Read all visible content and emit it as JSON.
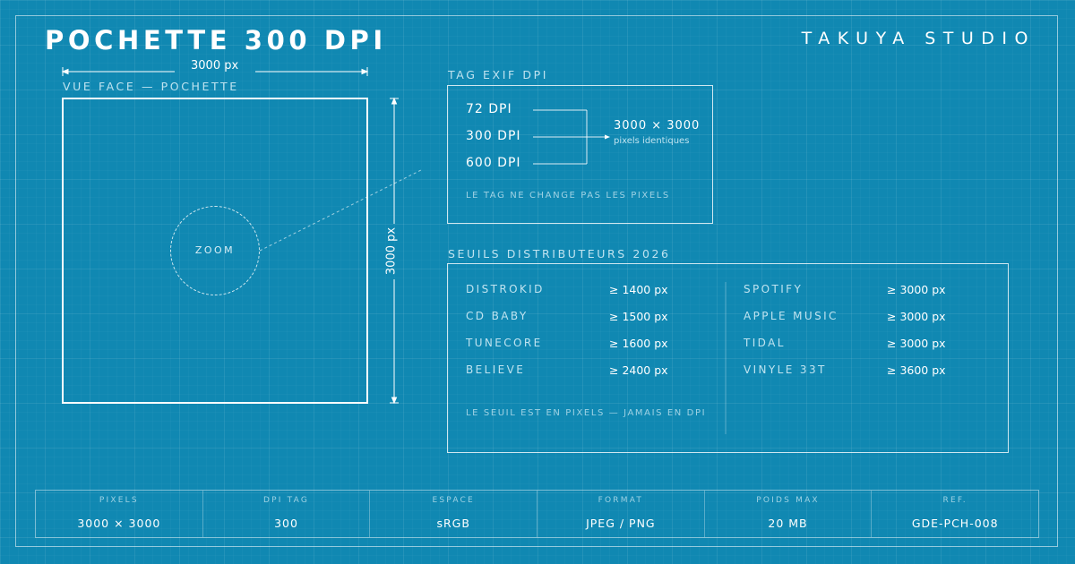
{
  "header": {
    "title": "POCHETTE 300 DPI",
    "studio": "TAKUYA STUDIO"
  },
  "cover_view": {
    "label": "VUE FACE — POCHETTE",
    "width_label": "3000 px",
    "height_label": "3000 px",
    "zoom_label": "ZOOM"
  },
  "exif": {
    "heading": "TAG EXIF DPI",
    "options": [
      "72 DPI",
      "300 DPI",
      "600 DPI"
    ],
    "result_main": "3000 × 3000",
    "result_sub": "pixels identiques",
    "note": "LE TAG NE CHANGE PAS LES PIXELS"
  },
  "thresholds": {
    "heading": "SEUILS DISTRIBUTEURS 2026",
    "left": [
      {
        "name": "DISTROKID",
        "value": "≥ 1400 px"
      },
      {
        "name": "CD BABY",
        "value": "≥ 1500 px"
      },
      {
        "name": "TUNECORE",
        "value": "≥ 1600 px"
      },
      {
        "name": "BELIEVE",
        "value": "≥ 2400 px"
      }
    ],
    "right": [
      {
        "name": "SPOTIFY",
        "value": "≥ 3000 px"
      },
      {
        "name": "APPLE MUSIC",
        "value": "≥ 3000 px"
      },
      {
        "name": "TIDAL",
        "value": "≥ 3000 px"
      },
      {
        "name": "VINYLE 33T",
        "value": "≥ 3600 px"
      }
    ],
    "note": "LE SEUIL EST EN PIXELS — JAMAIS EN DPI"
  },
  "specs": [
    {
      "label": "PIXELS",
      "value": "3000 × 3000"
    },
    {
      "label": "DPI TAG",
      "value": "300"
    },
    {
      "label": "ESPACE",
      "value": "sRGB"
    },
    {
      "label": "FORMAT",
      "value": "JPEG / PNG"
    },
    {
      "label": "POIDS MAX",
      "value": "20 MB"
    },
    {
      "label": "REF.",
      "value": "GDE-PCH-008"
    }
  ],
  "colors": {
    "background": "#1088b2",
    "line": "#ffffff",
    "muted_text": "#bfe3f0"
  }
}
